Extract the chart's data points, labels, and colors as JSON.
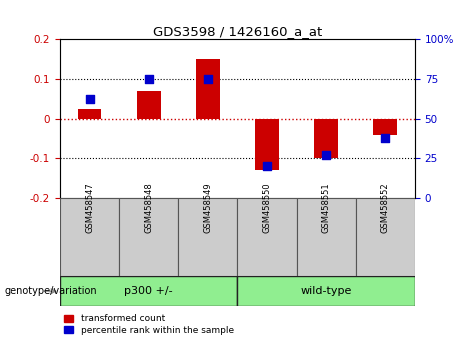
{
  "title": "GDS3598 / 1426160_a_at",
  "samples": [
    "GSM458547",
    "GSM458548",
    "GSM458549",
    "GSM458550",
    "GSM458551",
    "GSM458552"
  ],
  "red_values": [
    0.025,
    0.07,
    0.15,
    -0.13,
    -0.1,
    -0.04
  ],
  "blue_values_pct": [
    62,
    75,
    75,
    20,
    27,
    38
  ],
  "ylim_left": [
    -0.2,
    0.2
  ],
  "ylim_right": [
    0,
    100
  ],
  "left_yticks": [
    -0.2,
    -0.1,
    0.0,
    0.1,
    0.2
  ],
  "right_yticks": [
    0,
    25,
    50,
    75,
    100
  ],
  "groups": [
    {
      "label": "p300 +/-",
      "start": 0,
      "end": 2,
      "color": "#90EE90"
    },
    {
      "label": "wild-type",
      "start": 3,
      "end": 5,
      "color": "#90EE90"
    }
  ],
  "group_label": "genotype/variation",
  "red_color": "#CC0000",
  "blue_color": "#0000CC",
  "zero_line_color": "#CC0000",
  "dotted_line_color": "#000000",
  "bar_width": 0.4,
  "blue_marker_size": 30,
  "legend_red": "transformed count",
  "legend_blue": "percentile rank within the sample",
  "plot_bg": "#ffffff",
  "cell_bg": "#cccccc",
  "border_color": "#888888"
}
